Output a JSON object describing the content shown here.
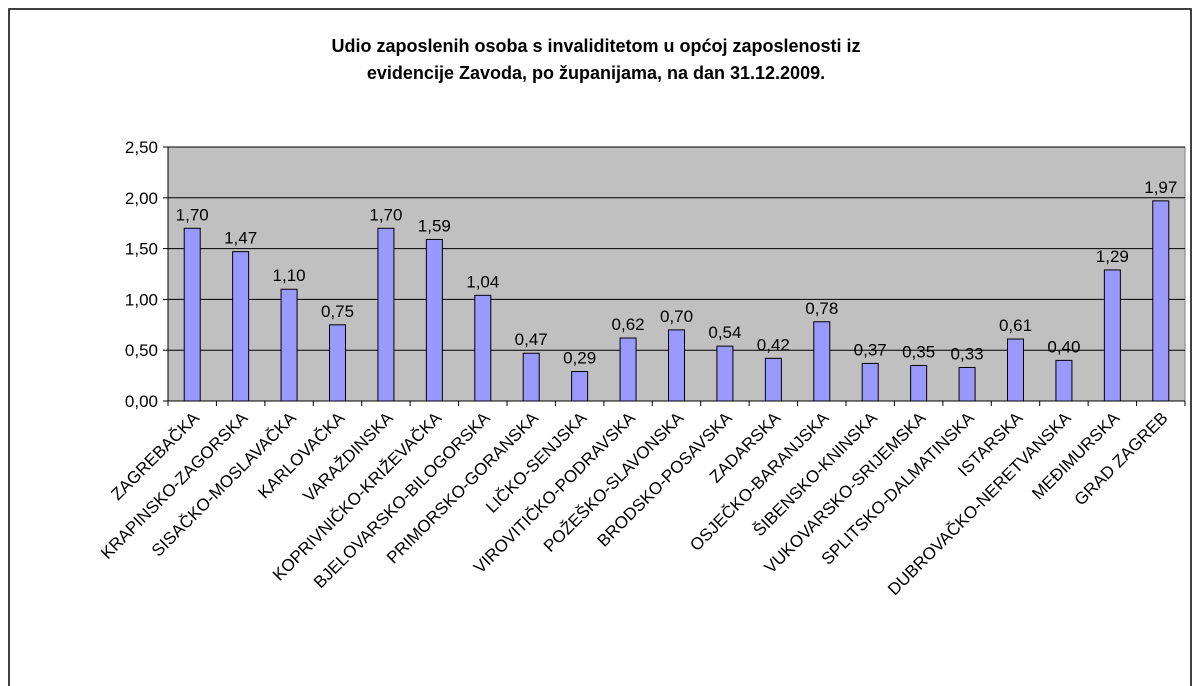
{
  "chart_data": {
    "type": "bar",
    "title": "Udio zaposlenih osoba s invaliditetom u općoj zaposlenosti iz evidencije Zavoda, po županijama, na dan 31.12.2009.",
    "categories": [
      "ZAGREBAČKA",
      "KRAPINSKO-ZAGORSKA",
      "SISAČKO-MOSLAVAČKA",
      "KARLOVAČKA",
      "VARAŽDINSKA",
      "KOPRIVNIČKO-KRIŽEVAČKA",
      "BJELOVARSKO-BILOGORSKA",
      "PRIMORSKO-GORANSKA",
      "LIČKO-SENJSKA",
      "VIROVITIČKO-PODRAVSKA",
      "POŽEŠKO-SLAVONSKA",
      "BRODSKO-POSAVSKA",
      "ZADARSKA",
      "OSJEČKO-BARANJSKA",
      "ŠIBENSKO-KNINSKA",
      "VUKOVARSKO-SRIJEMSKA",
      "SPLITSKO-DALMATINSKA",
      "ISTARSKA",
      "DUBROVAČKO-NERETVANSKA",
      "MEĐIMURSKA",
      "GRAD ZAGREB"
    ],
    "values": [
      1.7,
      1.47,
      1.1,
      0.75,
      1.7,
      1.59,
      1.04,
      0.47,
      0.29,
      0.62,
      0.7,
      0.54,
      0.42,
      0.78,
      0.37,
      0.35,
      0.33,
      0.61,
      0.4,
      1.29,
      1.97
    ],
    "value_labels": [
      "1,70",
      "1,47",
      "1,10",
      "0,75",
      "1,70",
      "1,59",
      "1,04",
      "0,47",
      "0,29",
      "0,62",
      "0,70",
      "0,54",
      "0,42",
      "0,78",
      "0,37",
      "0,35",
      "0,33",
      "0,61",
      "0,40",
      "1,29",
      "1,97"
    ],
    "color": "#9999ff",
    "ylim": [
      0,
      2.5
    ],
    "yticks": [
      {
        "value": 0,
        "label": "0,00"
      },
      {
        "value": 0.5,
        "label": "0,50"
      },
      {
        "value": 1,
        "label": "1,00"
      },
      {
        "value": 1.5,
        "label": "1,50"
      },
      {
        "value": 2,
        "label": "2,00"
      },
      {
        "value": 2.5,
        "label": "2,50"
      }
    ],
    "grid": true
  }
}
